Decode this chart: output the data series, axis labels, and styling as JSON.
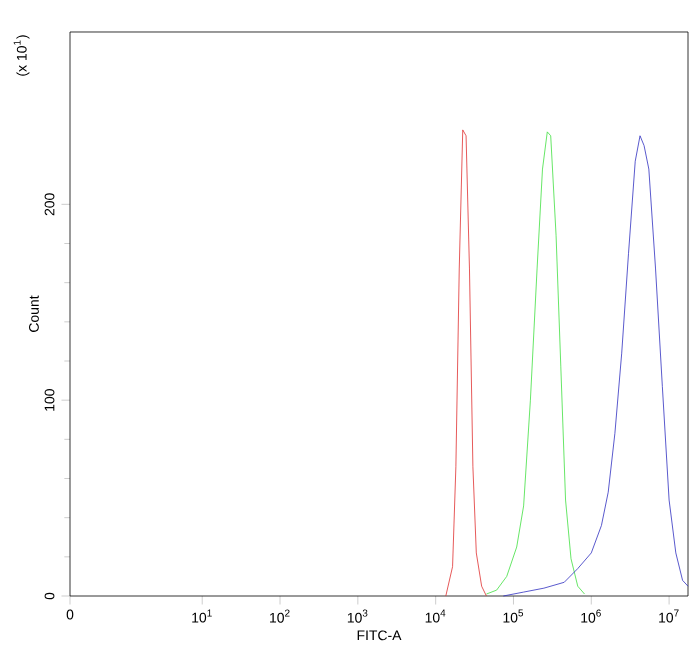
{
  "chart_data": {
    "type": "line",
    "xlabel": "FITC-A",
    "ylabel": "Count",
    "annotations": [
      "(x 10$^{1}$)"
    ],
    "log": "x",
    "grid": false,
    "legend": false,
    "xlim": [
      0.2,
      17500000
    ],
    "ylim": [
      0,
      288
    ],
    "xticks": [
      {
        "value": 0.2,
        "label": "0"
      },
      {
        "value": 10,
        "label": "10$^{1}$"
      },
      {
        "value": 100,
        "label": "10$^{2}$"
      },
      {
        "value": 1000,
        "label": "10$^{3}$"
      },
      {
        "value": 10000,
        "label": "10$^{4}$"
      },
      {
        "value": 100000,
        "label": "10$^{5}$"
      },
      {
        "value": 1000000,
        "label": "10$^{6}$"
      },
      {
        "value": 10000000,
        "label": "10$^{7}$"
      }
    ],
    "yticks": [
      0,
      100,
      200
    ],
    "series": [
      {
        "color": "#e03030",
        "x": [
          13500,
          16500,
          18200,
          20100,
          22300,
          24600,
          27200,
          30100,
          33300,
          39000,
          44900
        ],
        "values": [
          0,
          15,
          66,
          167,
          238,
          235,
          167,
          66,
          22,
          5,
          0
        ]
      },
      {
        "color": "#40e040",
        "x": [
          44900,
          60700,
          81900,
          110000,
          135000,
          165000,
          201000,
          236000,
          272000,
          301000,
          353000,
          406000,
          467000,
          549000,
          670000,
          819000
        ],
        "values": [
          1,
          3,
          10,
          25,
          46,
          100,
          167,
          218,
          237,
          235,
          184,
          117,
          49,
          19,
          5,
          1
        ]
      },
      {
        "color": "#3030c0",
        "x": [
          74100,
          135000,
          246000,
          449000,
          670000,
          1000000,
          1350000,
          1650000,
          2010000,
          2460000,
          3010000,
          3670000,
          4230000,
          4770000,
          5490000,
          6700000,
          8190000,
          10000000,
          12200000,
          14900000,
          17500000
        ],
        "values": [
          0,
          2,
          4,
          7,
          14,
          22,
          36,
          53,
          83,
          124,
          175,
          222,
          235,
          230,
          218,
          167,
          107,
          49,
          22,
          8,
          5
        ]
      }
    ]
  }
}
